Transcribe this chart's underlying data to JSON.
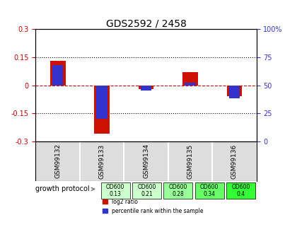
{
  "title": "GDS2592 / 2458",
  "samples": [
    "GSM99132",
    "GSM99133",
    "GSM99134",
    "GSM99135",
    "GSM99136"
  ],
  "log2_ratio": [
    0.13,
    -0.26,
    -0.02,
    0.07,
    -0.06
  ],
  "percentile_rank": [
    0.68,
    0.2,
    0.455,
    0.525,
    0.385
  ],
  "ylim_left": [
    -0.3,
    0.3
  ],
  "ylim_right": [
    0,
    100
  ],
  "yticks_left": [
    -0.3,
    -0.15,
    0,
    0.15,
    0.3
  ],
  "yticks_right": [
    0,
    25,
    50,
    75,
    100
  ],
  "ytick_labels_left": [
    "-0.3",
    "-0.15",
    "0",
    "0.15",
    "0.3"
  ],
  "ytick_labels_right": [
    "0",
    "25",
    "50",
    "75",
    "100%"
  ],
  "dotted_lines": [
    0.15,
    -0.15
  ],
  "zero_line_color": "#cc0000",
  "bar_color": "#cc1100",
  "blue_color": "#3333cc",
  "bar_width": 0.35,
  "growth_protocol_label": "growth protocol",
  "growth_protocol_values": [
    "OD600\n0.13",
    "OD600\n0.21",
    "OD600\n0.28",
    "OD600\n0.34",
    "OD600\n0.4"
  ],
  "growth_protocol_colors": [
    "#ccffcc",
    "#ccffcc",
    "#99ff99",
    "#66ff66",
    "#33ff33"
  ],
  "legend_red": "log2 ratio",
  "legend_blue": "percentile rank within the sample",
  "background_color": "#ffffff"
}
